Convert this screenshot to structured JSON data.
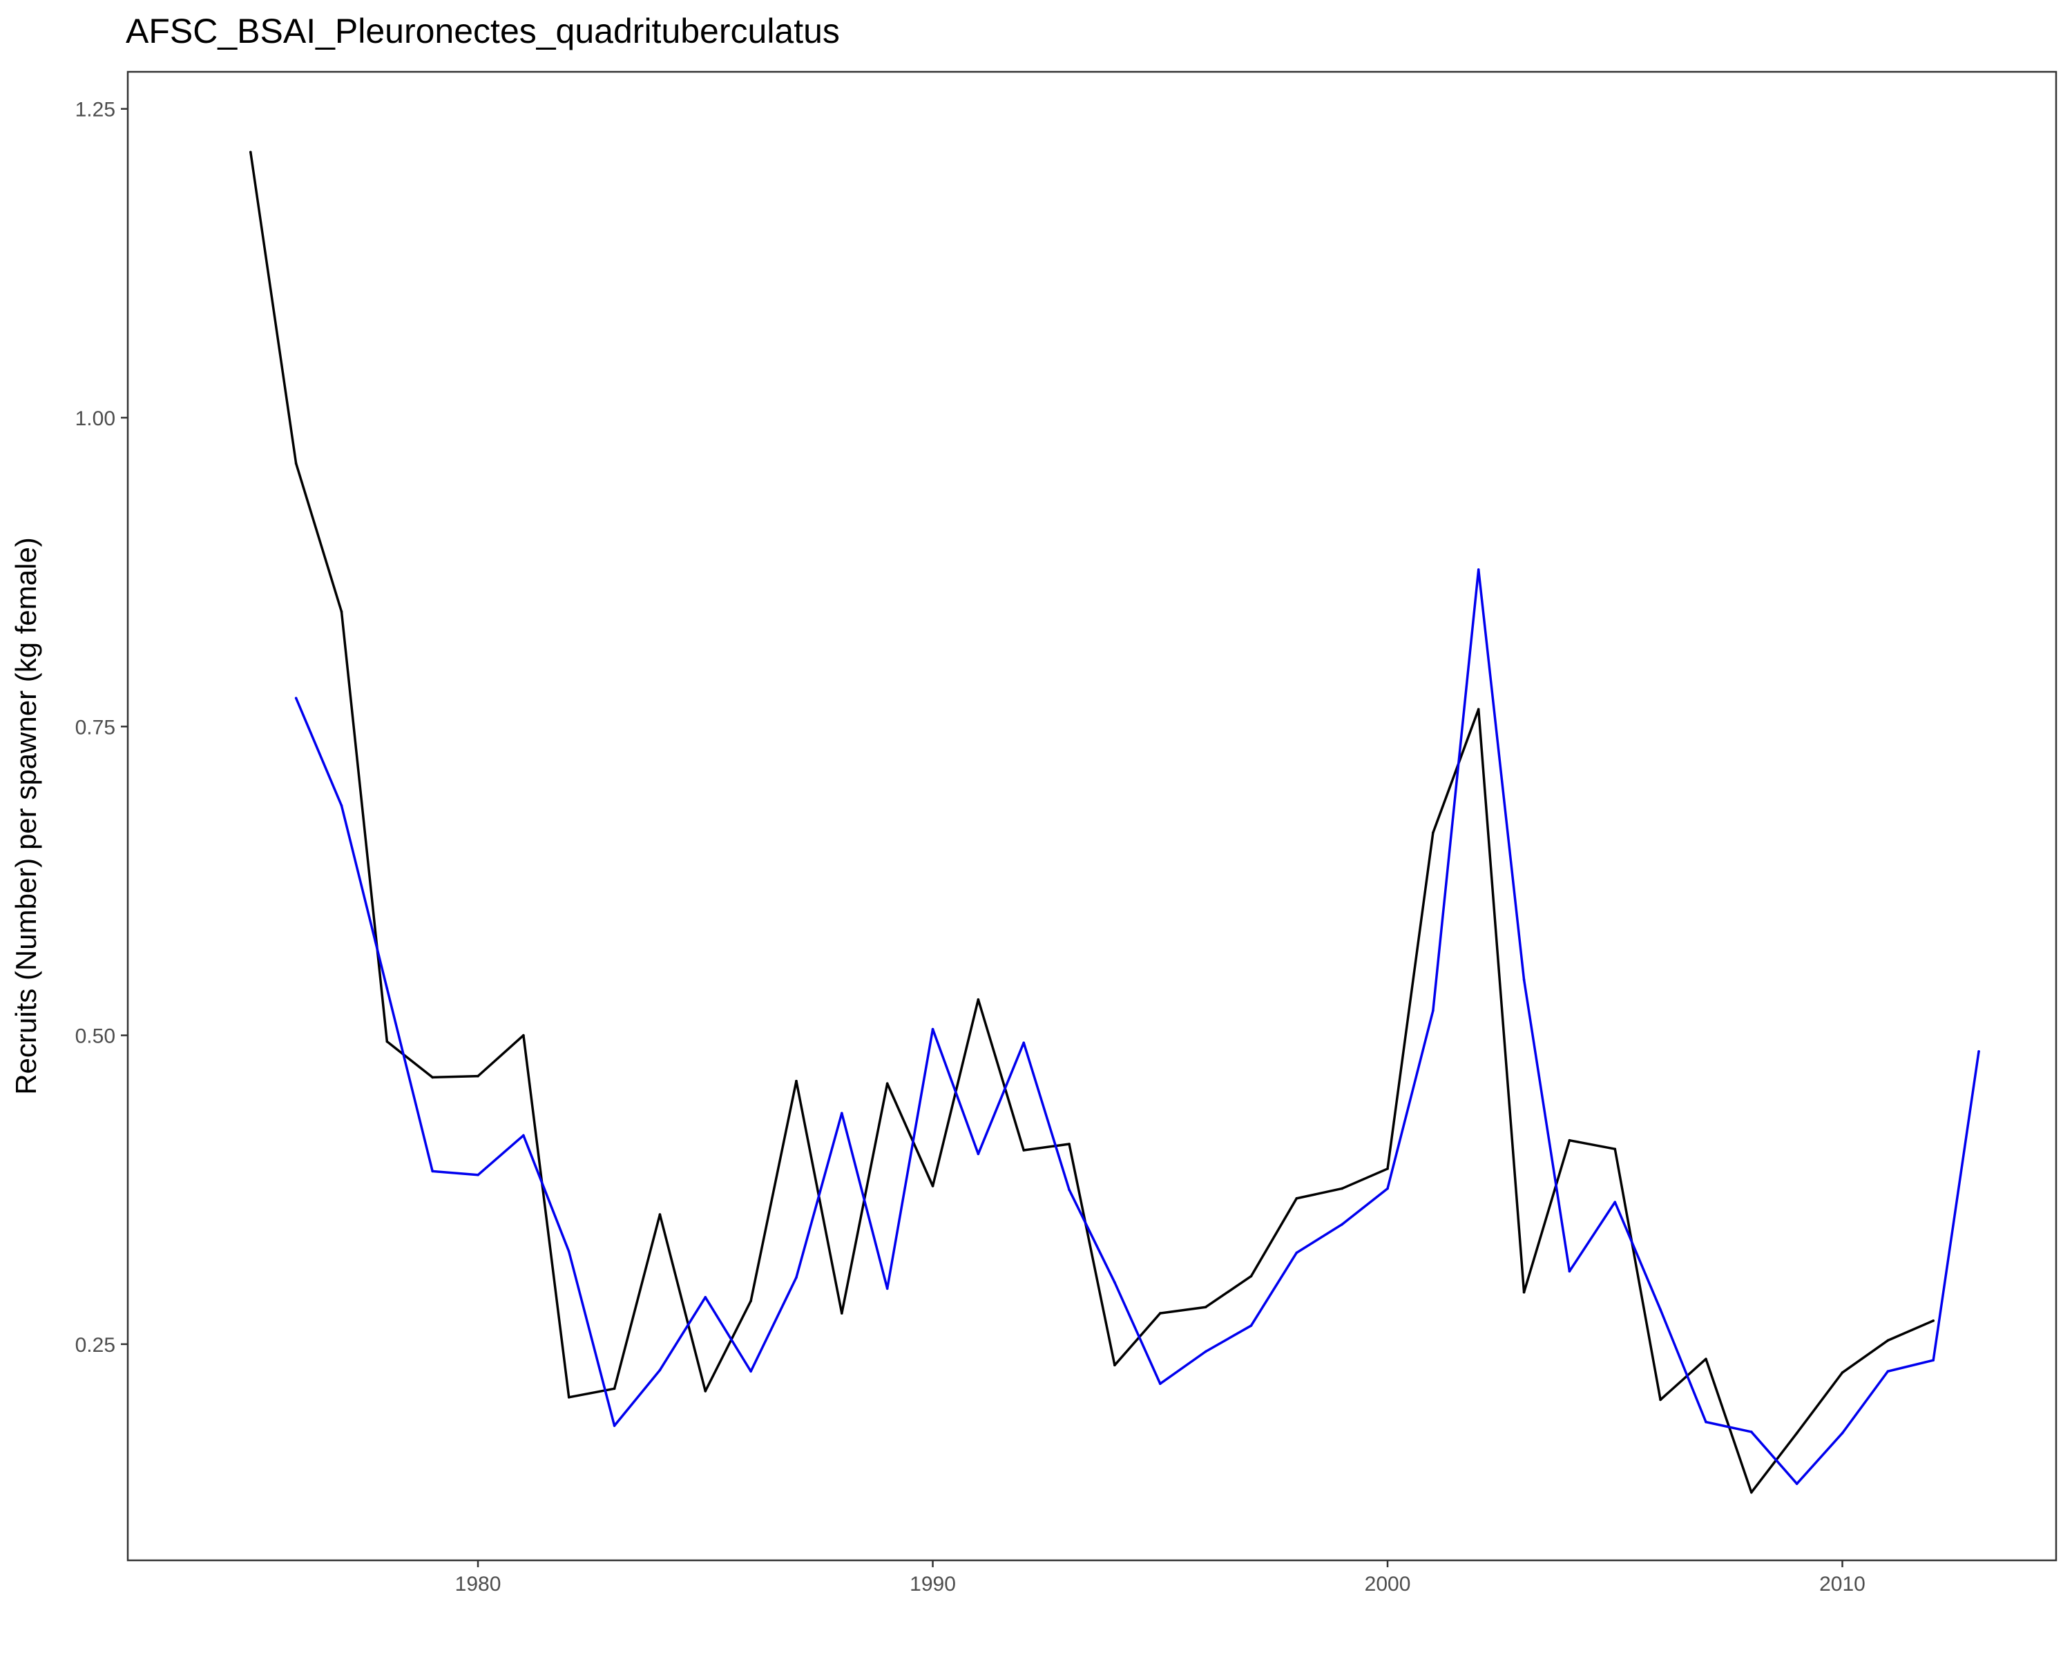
{
  "chart_data": {
    "type": "line",
    "title": "AFSC_BSAI_Pleuronectes_quadrituberculatus",
    "xlabel": "",
    "ylabel": "Recruits (Number) per spawner (kg female)",
    "xlim": [
      1972.3,
      2014.7
    ],
    "ylim": [
      0.075,
      1.28
    ],
    "x_ticks": [
      1980,
      1990,
      2000,
      2010
    ],
    "x_tick_labels": [
      "1980",
      "1990",
      "2000",
      "2010"
    ],
    "y_ticks": [
      0.25,
      0.5,
      0.75,
      1.0,
      1.25
    ],
    "y_tick_labels": [
      "0.25",
      "0.50",
      "0.75",
      "1.00",
      "1.25"
    ],
    "grid": false,
    "legend": "none",
    "series": [
      {
        "color": "#000000",
        "x": [
          1975,
          1976,
          1977,
          1978,
          1979,
          1980,
          1981,
          1982,
          1983,
          1984,
          1985,
          1986,
          1987,
          1988,
          1989,
          1990,
          1991,
          1992,
          1993,
          1994,
          1995,
          1996,
          1997,
          1998,
          1999,
          2000,
          2001,
          2002,
          2003,
          2004,
          2005,
          2006,
          2007,
          2008,
          2009,
          2010,
          2011,
          2012
        ],
        "y": [
          1.215,
          0.963,
          0.843,
          0.495,
          0.466,
          0.467,
          0.5,
          0.207,
          0.214,
          0.355,
          0.212,
          0.285,
          0.463,
          0.275,
          0.461,
          0.378,
          0.529,
          0.407,
          0.412,
          0.233,
          0.275,
          0.28,
          0.305,
          0.368,
          0.376,
          0.392,
          0.664,
          0.764,
          0.292,
          0.415,
          0.408,
          0.205,
          0.238,
          0.13,
          0.178,
          0.227,
          0.253,
          0.269
        ]
      },
      {
        "color": "#0000ee",
        "x": [
          1976,
          1977,
          1978,
          1979,
          1980,
          1981,
          1982,
          1983,
          1984,
          1985,
          1986,
          1987,
          1988,
          1989,
          1990,
          1991,
          1992,
          1993,
          1994,
          1995,
          1996,
          1997,
          1998,
          1999,
          2000,
          2001,
          2002,
          2003,
          2004,
          2005,
          2006,
          2007,
          2008,
          2009,
          2010,
          2011,
          2012,
          2013
        ],
        "y": [
          0.773,
          0.686,
          0.538,
          0.39,
          0.387,
          0.419,
          0.325,
          0.184,
          0.229,
          0.288,
          0.228,
          0.304,
          0.437,
          0.295,
          0.505,
          0.404,
          0.494,
          0.375,
          0.3,
          0.218,
          0.244,
          0.265,
          0.324,
          0.347,
          0.376,
          0.52,
          0.877,
          0.545,
          0.309,
          0.365,
          0.278,
          0.187,
          0.179,
          0.137,
          0.178,
          0.228,
          0.237,
          0.487
        ]
      }
    ]
  }
}
